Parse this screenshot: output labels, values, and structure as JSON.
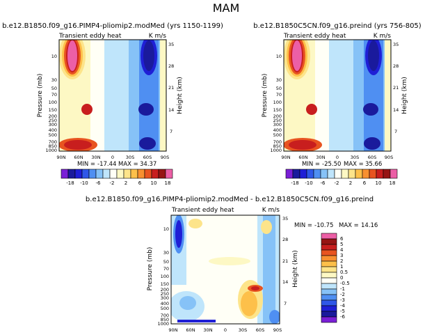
{
  "page_title": "MAM",
  "colors": {
    "neg": [
      "#7a1fd6",
      "#1a1a9c",
      "#1f1fd6",
      "#2f57e8",
      "#4f8ff2",
      "#86c2f7",
      "#bfe5fb"
    ],
    "pos": [
      "#fdf8c4",
      "#fde48a",
      "#fdc04a",
      "#f89030",
      "#e85420",
      "#c81e1e",
      "#961414",
      "#ec5fa6"
    ],
    "neutral": "#fffff6"
  },
  "chart_data": [
    {
      "type": "heatmap",
      "id": "top-left",
      "title": "b.e12.B1850.f09_g16.PIMP4-pliomip2.modMed (yrs 1150-1199)",
      "subtitle_left": "Transient eddy heat",
      "subtitle_right": "K m/s",
      "ylabel": "Pressure (mb)",
      "ylabel_right": "Height (km)",
      "x_ticks": [
        "90N",
        "60N",
        "30N",
        "0",
        "30S",
        "60S",
        "90S"
      ],
      "y_ticks": [
        "10",
        "30",
        "50",
        "70",
        "100",
        "150",
        "200",
        "250",
        "300",
        "400",
        "500",
        "700",
        "850",
        "1000"
      ],
      "y2_ticks": [
        "35",
        "28",
        "21",
        "14",
        "7"
      ],
      "stats": {
        "min_label": "MIN =",
        "min": "-17.44",
        "max_label": "MAX =",
        "max": "34.37"
      },
      "colorbar": {
        "labels": [
          "-18",
          "-10",
          "-6",
          "-2",
          "2",
          "6",
          "10",
          "18"
        ]
      }
    },
    {
      "type": "heatmap",
      "id": "top-right",
      "title": "b.e12.B1850C5CN.f09_g16.preind (yrs 756-805)",
      "subtitle_left": "Transient eddy heat",
      "subtitle_right": "K m/s",
      "ylabel": "Pressure (mb)",
      "ylabel_right": "Height (km)",
      "x_ticks": [
        "90N",
        "60N",
        "30N",
        "0",
        "30S",
        "60S",
        "90S"
      ],
      "y_ticks": [
        "10",
        "30",
        "50",
        "70",
        "100",
        "150",
        "200",
        "250",
        "300",
        "400",
        "500",
        "700",
        "850",
        "1000"
      ],
      "y2_ticks": [
        "35",
        "28",
        "21",
        "14",
        "7"
      ],
      "stats": {
        "min_label": "MIN =",
        "min": "-25.50",
        "max_label": "MAX =",
        "max": "35.66"
      },
      "colorbar": {
        "labels": [
          "-18",
          "-10",
          "-6",
          "-2",
          "2",
          "6",
          "10",
          "18"
        ]
      }
    },
    {
      "type": "heatmap",
      "id": "bottom-diff",
      "title": "b.e12.B1850.f09_g16.PIMP4-pliomip2.modMed - b.e12.B1850C5CN.f09_g16.preind",
      "subtitle_left": "Transient eddy heat",
      "subtitle_right": "K m/s",
      "ylabel": "Pressure (mb)",
      "ylabel_right": "Height (km)",
      "x_ticks": [
        "90N",
        "60N",
        "30N",
        "0",
        "30S",
        "60S",
        "90S"
      ],
      "y_ticks": [
        "10",
        "30",
        "50",
        "70",
        "100",
        "150",
        "200",
        "250",
        "300",
        "400",
        "500",
        "700",
        "850",
        "1000"
      ],
      "y2_ticks": [
        "35",
        "28",
        "21",
        "14",
        "7"
      ],
      "stats": {
        "min_label": "MIN =",
        "min": "-10.75",
        "max_label": "MAX =",
        "max": "14.16"
      },
      "colorbar": {
        "labels": [
          "6",
          "5",
          "4",
          "3",
          "2",
          "1",
          "0.5",
          "0",
          "-0.5",
          "-1",
          "-2",
          "-3",
          "-4",
          "-5",
          "-6"
        ]
      }
    }
  ]
}
